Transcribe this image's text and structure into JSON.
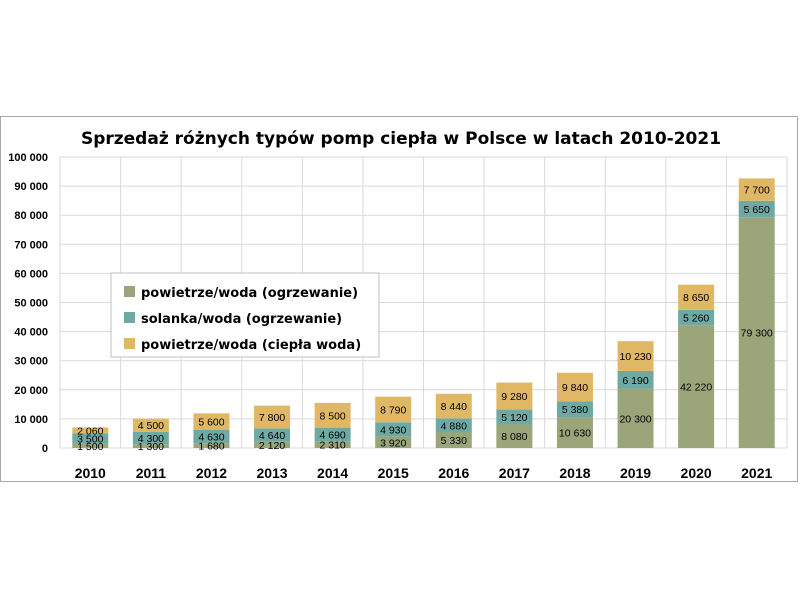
{
  "chart_data": {
    "type": "bar",
    "stacked": true,
    "title": "Sprzedaż różnych typów pomp ciepła w Polsce w latach 2010-2021",
    "categories": [
      "2010",
      "2011",
      "2012",
      "2013",
      "2014",
      "2015",
      "2016",
      "2017",
      "2018",
      "2019",
      "2020",
      "2021"
    ],
    "series": [
      {
        "name": "powietrze/woda (ogrzewanie)",
        "color": "#9ba57a",
        "values": [
          1500,
          1300,
          1680,
          2120,
          2310,
          3920,
          5330,
          8080,
          10630,
          20300,
          42220,
          79300
        ],
        "labels": [
          "1 500",
          "1 300",
          "1 680",
          "2 120",
          "2 310",
          "3 920",
          "5 330",
          "8 080",
          "10 630",
          "20 300",
          "42 220",
          "79 300"
        ]
      },
      {
        "name": "solanka/woda (ogrzewanie)",
        "color": "#6ea9a3",
        "values": [
          3500,
          4300,
          4630,
          4640,
          4690,
          4930,
          4880,
          5120,
          5380,
          6190,
          5260,
          5650
        ],
        "labels": [
          "3 500",
          "4 300",
          "4 630",
          "4 640",
          "4 690",
          "4 930",
          "4 880",
          "5 120",
          "5 380",
          "6 190",
          "5 260",
          "5 650"
        ]
      },
      {
        "name": "powietrze/woda (ciepła woda)",
        "color": "#e0b865",
        "values": [
          2060,
          4500,
          5600,
          7800,
          8500,
          8790,
          8440,
          9280,
          9840,
          10230,
          8650,
          7700
        ],
        "labels": [
          "2 060",
          "4 500",
          "5 600",
          "7 800",
          "8 500",
          "8 790",
          "8 440",
          "9 280",
          "9 840",
          "10 230",
          "8 650",
          "7 700"
        ]
      }
    ],
    "ylim": [
      0,
      100000
    ],
    "yticks": [
      "0",
      "10 000",
      "20 000",
      "30 000",
      "40 000",
      "50 000",
      "60 000",
      "70 000",
      "80 000",
      "90 000",
      "100 000"
    ],
    "grid": true,
    "legend_position": "left-inside"
  }
}
